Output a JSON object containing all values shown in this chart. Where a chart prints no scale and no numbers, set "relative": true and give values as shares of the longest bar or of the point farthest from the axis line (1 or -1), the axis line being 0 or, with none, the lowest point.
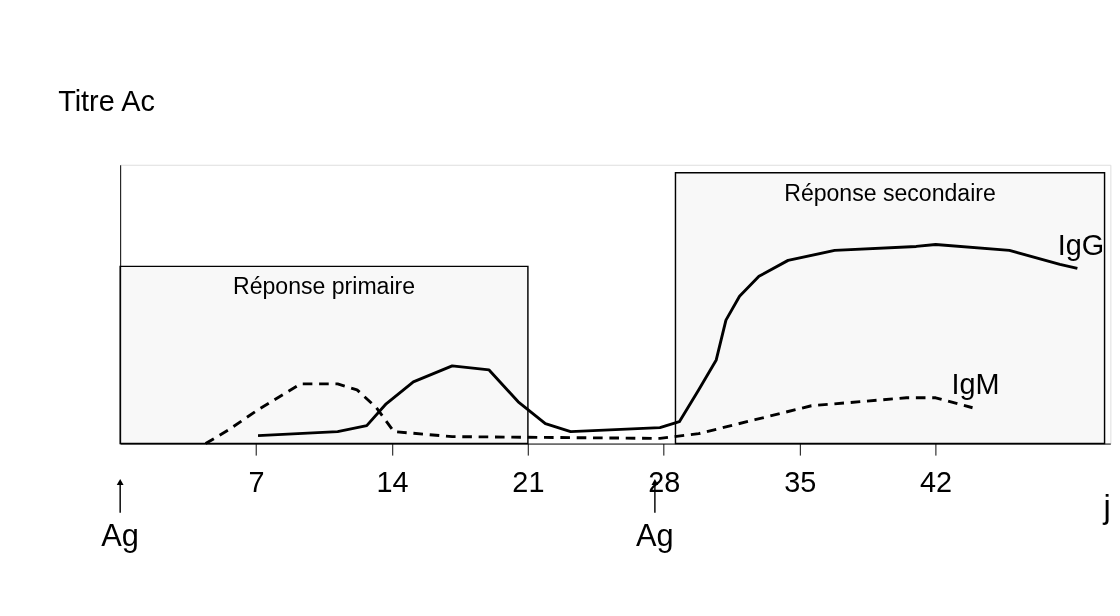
{
  "chart_data": {
    "type": "line",
    "relative": true,
    "ylabel": "Titre Ac",
    "xlabel": "j",
    "xlim": [
      0,
      51
    ],
    "xticks": [
      7,
      14,
      21,
      28,
      35,
      42
    ],
    "grid": false,
    "tick_labels": "x",
    "series": [
      {
        "name": "IgG",
        "color": "#000000",
        "line_style": "solid",
        "x": [
          7.1,
          11.2,
          12.7,
          13.7,
          15.1,
          17.1,
          19.0,
          20.5,
          21.9,
          23.2,
          27.8,
          28.8,
          29.8,
          30.7,
          31.2,
          31.9,
          32.9,
          34.4,
          36.8,
          41.0,
          42.0,
          45.8,
          48.4,
          49.3
        ],
        "values": [
          0.04,
          0.06,
          0.09,
          0.2,
          0.31,
          0.39,
          0.37,
          0.21,
          0.1,
          0.06,
          0.08,
          0.11,
          0.27,
          0.42,
          0.62,
          0.74,
          0.84,
          0.92,
          0.97,
          0.99,
          1,
          0.97,
          0.9,
          0.88
        ]
      },
      {
        "name": "IgM",
        "color": "#000000",
        "line_style": "dashed",
        "x": [
          4.4,
          5.6,
          7.1,
          9.3,
          11.2,
          12.2,
          13.2,
          14.1,
          17.1,
          27.8,
          29.8,
          32.7,
          35.6,
          40.5,
          42.0,
          43.9
        ],
        "values": [
          0,
          0.07,
          0.17,
          0.3,
          0.3,
          0.27,
          0.18,
          0.06,
          0.035,
          0.026,
          0.05,
          0.12,
          0.19,
          0.23,
          0.23,
          0.18
        ]
      }
    ],
    "bands": [
      {
        "axis": "x",
        "from": 0,
        "to": 21,
        "label": "Réponse primaire"
      },
      {
        "axis": "x",
        "from": 28.6,
        "to": 50.7,
        "label": "Réponse secondaire"
      }
    ],
    "annotations": [
      "Ag",
      "Ag"
    ]
  }
}
